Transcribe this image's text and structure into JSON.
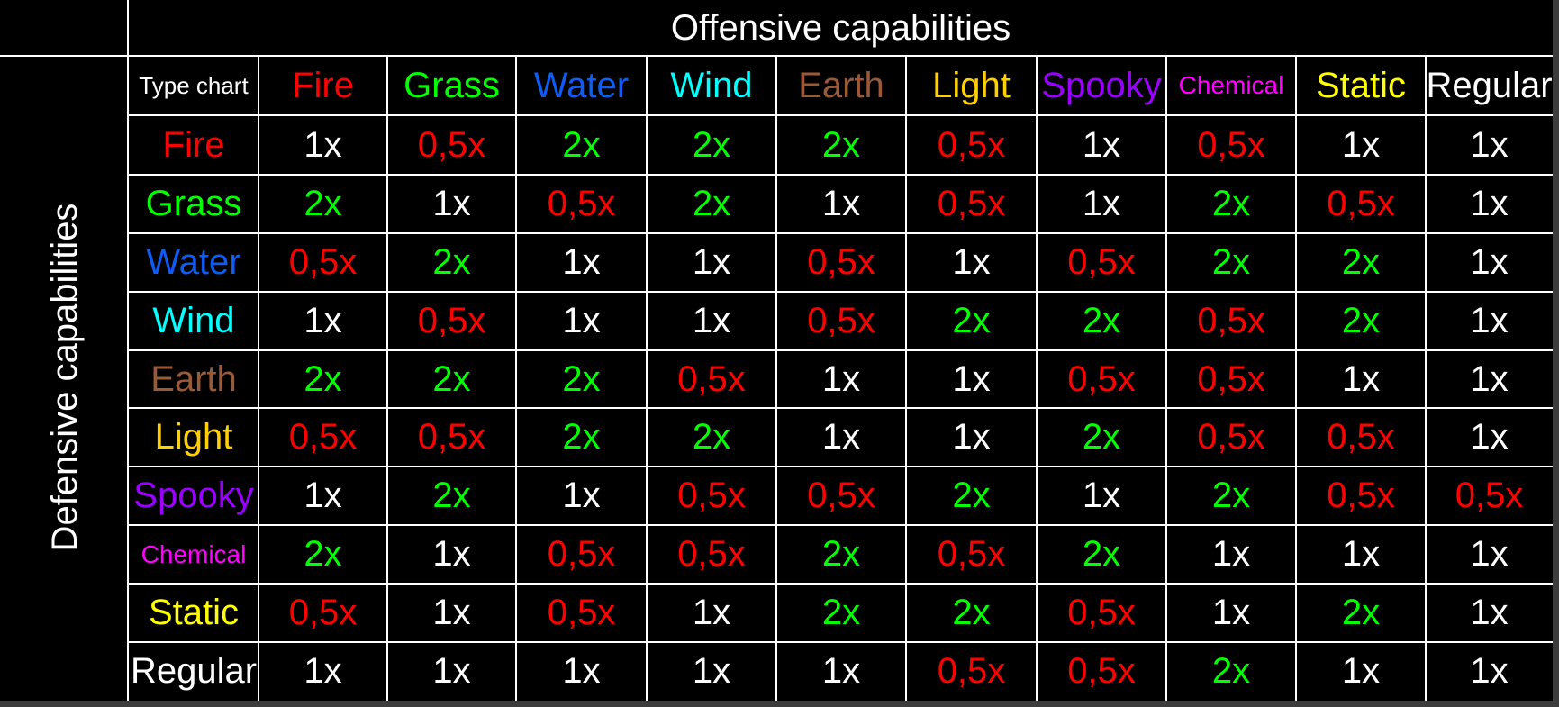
{
  "chart_data": {
    "type": "table",
    "title": "Offensive capabilities",
    "row_axis_label": "Defensive capabilities",
    "corner_label": "Type chart",
    "columns": [
      {
        "label": "Fire",
        "color": "#ff0000"
      },
      {
        "label": "Grass",
        "color": "#00ff00"
      },
      {
        "label": "Water",
        "color": "#0f5cf5"
      },
      {
        "label": "Wind",
        "color": "#00ffff"
      },
      {
        "label": "Earth",
        "color": "#9a5a38"
      },
      {
        "label": "Light",
        "color": "#ffd000"
      },
      {
        "label": "Spooky",
        "color": "#9900ff"
      },
      {
        "label": "Chemical",
        "color": "#ff00ff"
      },
      {
        "label": "Static",
        "color": "#ffff00"
      },
      {
        "label": "Regular",
        "color": "#ffffff"
      }
    ],
    "rows": [
      {
        "label": "Fire",
        "color": "#ff0000",
        "values": [
          "1x",
          "0,5x",
          "2x",
          "2x",
          "2x",
          "0,5x",
          "1x",
          "0,5x",
          "1x",
          "1x"
        ]
      },
      {
        "label": "Grass",
        "color": "#00ff00",
        "values": [
          "2x",
          "1x",
          "0,5x",
          "2x",
          "1x",
          "0,5x",
          "1x",
          "2x",
          "0,5x",
          "1x"
        ]
      },
      {
        "label": "Water",
        "color": "#0f5cf5",
        "values": [
          "0,5x",
          "2x",
          "1x",
          "1x",
          "0,5x",
          "1x",
          "0,5x",
          "2x",
          "2x",
          "1x"
        ]
      },
      {
        "label": "Wind",
        "color": "#00ffff",
        "values": [
          "1x",
          "0,5x",
          "1x",
          "1x",
          "0,5x",
          "2x",
          "2x",
          "0,5x",
          "2x",
          "1x"
        ]
      },
      {
        "label": "Earth",
        "color": "#9a5a38",
        "values": [
          "2x",
          "2x",
          "2x",
          "0,5x",
          "1x",
          "1x",
          "0,5x",
          "0,5x",
          "1x",
          "1x"
        ]
      },
      {
        "label": "Light",
        "color": "#ffd000",
        "values": [
          "0,5x",
          "0,5x",
          "2x",
          "2x",
          "1x",
          "1x",
          "2x",
          "0,5x",
          "0,5x",
          "1x"
        ]
      },
      {
        "label": "Spooky",
        "color": "#9900ff",
        "values": [
          "1x",
          "2x",
          "1x",
          "0,5x",
          "0,5x",
          "2x",
          "1x",
          "2x",
          "0,5x",
          "0,5x"
        ]
      },
      {
        "label": "Chemical",
        "color": "#ff00ff",
        "values": [
          "2x",
          "1x",
          "0,5x",
          "0,5x",
          "2x",
          "0,5x",
          "2x",
          "1x",
          "1x",
          "1x"
        ]
      },
      {
        "label": "Static",
        "color": "#ffff00",
        "values": [
          "0,5x",
          "1x",
          "0,5x",
          "1x",
          "2x",
          "2x",
          "0,5x",
          "1x",
          "2x",
          "1x"
        ]
      },
      {
        "label": "Regular",
        "color": "#ffffff",
        "values": [
          "1x",
          "1x",
          "1x",
          "1x",
          "1x",
          "0,5x",
          "0,5x",
          "2x",
          "1x",
          "1x"
        ]
      }
    ],
    "value_colors": {
      "2x": "#00ff00",
      "1x": "#ffffff",
      "0,5x": "#ff0000"
    },
    "background": "#000000",
    "grid": true
  }
}
